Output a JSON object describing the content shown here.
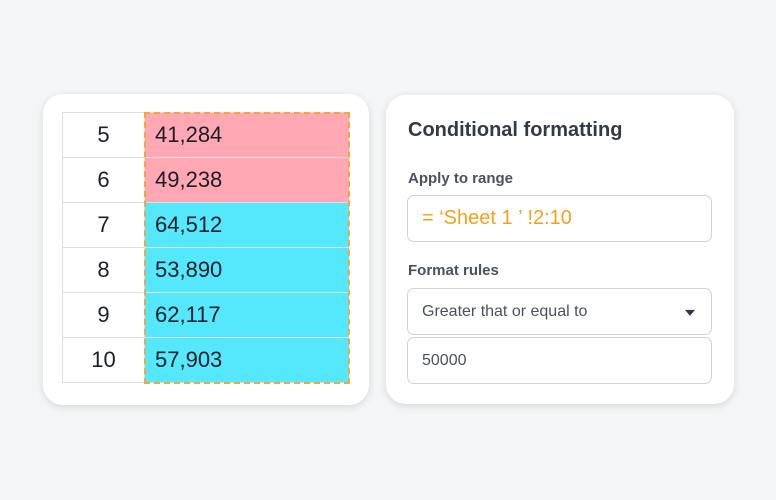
{
  "sheet": {
    "rows": [
      {
        "row": "5",
        "value": "41,284",
        "fill": "#ffa8b4"
      },
      {
        "row": "6",
        "value": "49,238",
        "fill": "#ffa8b4"
      },
      {
        "row": "7",
        "value": "64,512",
        "fill": "#55e8fc"
      },
      {
        "row": "8",
        "value": "53,890",
        "fill": "#55e8fc"
      },
      {
        "row": "9",
        "value": "62,117",
        "fill": "#55e8fc"
      },
      {
        "row": "10",
        "value": "57,903",
        "fill": "#55e8fc"
      }
    ],
    "selection_color": "#f5a53a"
  },
  "conditional_formatting": {
    "title": "Conditional formatting",
    "apply_label": "Apply to range",
    "range_value": "= ‘Sheet 1 ’ !2:10",
    "rules_label": "Format rules",
    "rule_condition": "Greater that or equal to",
    "rule_value": "50000",
    "accent_color": "#f5a01a"
  }
}
